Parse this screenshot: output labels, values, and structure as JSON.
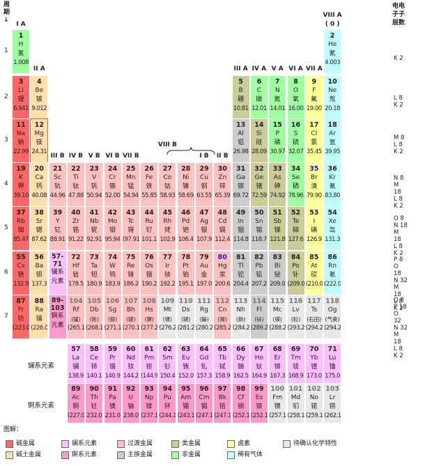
{
  "header": {
    "period_label": "周\n期",
    "arrow": "↓",
    "shell_label_lines": [
      "电电",
      "子子",
      "层数"
    ]
  },
  "groups": [
    {
      "label": "I A",
      "col": 1
    },
    {
      "label": "II A",
      "col": 2
    },
    {
      "label": "III B",
      "col": 3
    },
    {
      "label": "IV B",
      "col": 4
    },
    {
      "label": "V B",
      "col": 5
    },
    {
      "label": "VI B",
      "col": 6
    },
    {
      "label": "VII B",
      "col": 7
    },
    {
      "label": "VIII B",
      "col": 9
    },
    {
      "label": "I B",
      "col": 11
    },
    {
      "label": "II B",
      "col": 12
    },
    {
      "label": "III A",
      "col": 13
    },
    {
      "label": "IV A",
      "col": 14
    },
    {
      "label": "V A",
      "col": 15
    },
    {
      "label": "VI A",
      "col": 16
    },
    {
      "label": "VII A",
      "col": 17
    },
    {
      "label": "VIII A",
      "col": 18
    },
    {
      "label": "( 0 )",
      "col": 18
    }
  ],
  "periods": [
    "1",
    "2",
    "3",
    "4",
    "5",
    "6",
    "7"
  ],
  "shells": [
    [
      "K 2"
    ],
    [
      "L 8",
      "K 2"
    ],
    [
      "M 8",
      "L 8",
      "K 2"
    ],
    [
      "N 8",
      "M 18",
      "L 8",
      "K 2"
    ],
    [
      "O 8",
      "N 18",
      "M 18",
      "L 8",
      "K 2"
    ],
    [
      "P 8",
      "O 18",
      "N 32",
      "M 18",
      "L 8",
      "K 2"
    ],
    [
      "Q 8",
      "P 18",
      "O 32",
      "N 32",
      "M 18",
      "L 8",
      "K 2"
    ]
  ],
  "colors": {
    "alkali": "#ff6666",
    "alkaline": "#ffdead",
    "transition": "#ffc0c0",
    "lanthanide": "#ffbfff",
    "actinide": "#ff99cc",
    "poor": "#cccccc",
    "metalloid": "#cccc99",
    "nonmetal": "#a0ffa0",
    "halogen": "#ffff99",
    "noble": "#c0ffff",
    "unknown": "#e8e8e8"
  },
  "elements": [
    {
      "n": "1",
      "s": "H",
      "c": "氢",
      "m": "1.008",
      "p": 1,
      "g": 1,
      "t": "nonmetal"
    },
    {
      "n": "2",
      "s": "He",
      "c": "氦",
      "m": "4.003",
      "p": 1,
      "g": 18,
      "t": "noble"
    },
    {
      "n": "3",
      "s": "Li",
      "c": "锂",
      "m": "6.941",
      "p": 2,
      "g": 1,
      "t": "alkali"
    },
    {
      "n": "4",
      "s": "Be",
      "c": "铍",
      "m": "9.012",
      "p": 2,
      "g": 2,
      "t": "alkaline"
    },
    {
      "n": "5",
      "s": "B",
      "c": "硼",
      "m": "10.81",
      "p": 2,
      "g": 13,
      "t": "metalloid"
    },
    {
      "n": "6",
      "s": "C",
      "c": "碳",
      "m": "12.01",
      "p": 2,
      "g": 14,
      "t": "nonmetal"
    },
    {
      "n": "7",
      "s": "N",
      "c": "氮",
      "m": "14.01",
      "p": 2,
      "g": 15,
      "t": "nonmetal"
    },
    {
      "n": "8",
      "s": "O",
      "c": "氧",
      "m": "16.00",
      "p": 2,
      "g": 16,
      "t": "nonmetal"
    },
    {
      "n": "9",
      "s": "F",
      "c": "氟",
      "m": "19.00",
      "p": 2,
      "g": 17,
      "t": "halogen"
    },
    {
      "n": "10",
      "s": "Ne",
      "c": "氖",
      "m": "20.18",
      "p": 2,
      "g": 18,
      "t": "noble"
    },
    {
      "n": "11",
      "s": "Na",
      "c": "钠",
      "m": "22.99",
      "p": 3,
      "g": 1,
      "t": "alkali"
    },
    {
      "n": "12",
      "s": "Mg",
      "c": "镁",
      "m": "24.31",
      "p": 3,
      "g": 2,
      "t": "alkaline",
      "sel": true
    },
    {
      "n": "13",
      "s": "Al",
      "c": "铝",
      "m": "26.98",
      "p": 3,
      "g": 13,
      "t": "poor"
    },
    {
      "n": "14",
      "s": "Si",
      "c": "硅",
      "m": "28.09",
      "p": 3,
      "g": 14,
      "t": "metalloid"
    },
    {
      "n": "15",
      "s": "P",
      "c": "磷",
      "m": "30.97",
      "p": 3,
      "g": 15,
      "t": "nonmetal"
    },
    {
      "n": "16",
      "s": "S",
      "c": "硫",
      "m": "32.07",
      "p": 3,
      "g": 16,
      "t": "nonmetal"
    },
    {
      "n": "17",
      "s": "Cl",
      "c": "氯",
      "m": "35.45",
      "p": 3,
      "g": 17,
      "t": "halogen"
    },
    {
      "n": "18",
      "s": "Ar",
      "c": "氩",
      "m": "39.95",
      "p": 3,
      "g": 18,
      "t": "noble"
    },
    {
      "n": "19",
      "s": "K",
      "c": "钾",
      "m": "39.10",
      "p": 4,
      "g": 1,
      "t": "alkali"
    },
    {
      "n": "20",
      "s": "Ca",
      "c": "钙",
      "m": "40.08",
      "p": 4,
      "g": 2,
      "t": "alkaline"
    },
    {
      "n": "21",
      "s": "Sc",
      "c": "钪",
      "m": "44.96",
      "p": 4,
      "g": 3,
      "t": "transition"
    },
    {
      "n": "22",
      "s": "Ti",
      "c": "钛",
      "m": "47.88",
      "p": 4,
      "g": 4,
      "t": "transition"
    },
    {
      "n": "23",
      "s": "V",
      "c": "钒",
      "m": "50.94",
      "p": 4,
      "g": 5,
      "t": "transition"
    },
    {
      "n": "24",
      "s": "Cr",
      "c": "铬",
      "m": "52.00",
      "p": 4,
      "g": 6,
      "t": "transition"
    },
    {
      "n": "25",
      "s": "Mn",
      "c": "锰",
      "m": "54.94",
      "p": 4,
      "g": 7,
      "t": "transition"
    },
    {
      "n": "26",
      "s": "Fe",
      "c": "铁",
      "m": "55.85",
      "p": 4,
      "g": 8,
      "t": "transition"
    },
    {
      "n": "27",
      "s": "Co",
      "c": "钴",
      "m": "58.93",
      "p": 4,
      "g": 9,
      "t": "transition"
    },
    {
      "n": "28",
      "s": "Ni",
      "c": "镍",
      "m": "58.69",
      "p": 4,
      "g": 10,
      "t": "transition"
    },
    {
      "n": "29",
      "s": "Cu",
      "c": "铜",
      "m": "63.55",
      "p": 4,
      "g": 11,
      "t": "transition"
    },
    {
      "n": "30",
      "s": "Zn",
      "c": "锌",
      "m": "65.39",
      "p": 4,
      "g": 12,
      "t": "transition"
    },
    {
      "n": "31",
      "s": "Ga",
      "c": "镓",
      "m": "69.72",
      "p": 4,
      "g": 13,
      "t": "poor"
    },
    {
      "n": "32",
      "s": "Ge",
      "c": "锗",
      "m": "72.59",
      "p": 4,
      "g": 14,
      "t": "metalloid"
    },
    {
      "n": "33",
      "s": "As",
      "c": "砷",
      "m": "74.92",
      "p": 4,
      "g": 15,
      "t": "metalloid"
    },
    {
      "n": "34",
      "s": "Se",
      "c": "硒",
      "m": "78.96",
      "p": 4,
      "g": 16,
      "t": "nonmetal"
    },
    {
      "n": "35",
      "s": "Br",
      "c": "溴",
      "m": "79.90",
      "p": 4,
      "g": 17,
      "t": "halogen",
      "blue": true
    },
    {
      "n": "36",
      "s": "Kr",
      "c": "氪",
      "m": "83.80",
      "p": 4,
      "g": 18,
      "t": "noble"
    },
    {
      "n": "37",
      "s": "Rb",
      "c": "铷",
      "m": "85.47",
      "p": 5,
      "g": 1,
      "t": "alkali"
    },
    {
      "n": "38",
      "s": "Sr",
      "c": "锶",
      "m": "87.62",
      "p": 5,
      "g": 2,
      "t": "alkaline"
    },
    {
      "n": "39",
      "s": "Y",
      "c": "钇",
      "m": "88.91",
      "p": 5,
      "g": 3,
      "t": "transition"
    },
    {
      "n": "40",
      "s": "Zr",
      "c": "锆",
      "m": "91.22",
      "p": 5,
      "g": 4,
      "t": "transition"
    },
    {
      "n": "41",
      "s": "Nb",
      "c": "铌",
      "m": "92.91",
      "p": 5,
      "g": 5,
      "t": "transition"
    },
    {
      "n": "42",
      "s": "Mo",
      "c": "钼",
      "m": "95.94",
      "p": 5,
      "g": 6,
      "t": "transition"
    },
    {
      "n": "43",
      "s": "Tc",
      "c": "锝",
      "m": "(97.91)",
      "p": 5,
      "g": 7,
      "t": "transition"
    },
    {
      "n": "44",
      "s": "Ru",
      "c": "钌",
      "m": "101.1",
      "p": 5,
      "g": 8,
      "t": "transition"
    },
    {
      "n": "45",
      "s": "Rh",
      "c": "铑",
      "m": "102.9",
      "p": 5,
      "g": 9,
      "t": "transition"
    },
    {
      "n": "46",
      "s": "Pd",
      "c": "钯",
      "m": "106.4",
      "p": 5,
      "g": 10,
      "t": "transition"
    },
    {
      "n": "47",
      "s": "Ag",
      "c": "银",
      "m": "107.9",
      "p": 5,
      "g": 11,
      "t": "transition"
    },
    {
      "n": "48",
      "s": "Cd",
      "c": "镉",
      "m": "112.4",
      "p": 5,
      "g": 12,
      "t": "transition"
    },
    {
      "n": "49",
      "s": "In",
      "c": "铟",
      "m": "114.8",
      "p": 5,
      "g": 13,
      "t": "poor"
    },
    {
      "n": "50",
      "s": "Sn",
      "c": "锡",
      "m": "118.7",
      "p": 5,
      "g": 14,
      "t": "poor"
    },
    {
      "n": "51",
      "s": "Sb",
      "c": "锑",
      "m": "121.8",
      "p": 5,
      "g": 15,
      "t": "metalloid"
    },
    {
      "n": "52",
      "s": "Te",
      "c": "碲",
      "m": "127.6",
      "p": 5,
      "g": 16,
      "t": "metalloid"
    },
    {
      "n": "53",
      "s": "I",
      "c": "碘",
      "m": "126.9",
      "p": 5,
      "g": 17,
      "t": "halogen"
    },
    {
      "n": "54",
      "s": "Xe",
      "c": "氙",
      "m": "131.3",
      "p": 5,
      "g": 18,
      "t": "noble"
    },
    {
      "n": "55",
      "s": "Cs",
      "c": "铯",
      "m": "132.9",
      "p": 6,
      "g": 1,
      "t": "alkali"
    },
    {
      "n": "56",
      "s": "Ba",
      "c": "钡",
      "m": "137.3",
      "p": 6,
      "g": 2,
      "t": "alkaline"
    },
    {
      "n": "57-\n71",
      "s": "镧系",
      "c": "元素",
      "m": "",
      "p": 6,
      "g": 3,
      "t": "lanthanide",
      "series": true
    },
    {
      "n": "72",
      "s": "Hf",
      "c": "铪",
      "m": "178.5",
      "p": 6,
      "g": 4,
      "t": "transition"
    },
    {
      "n": "73",
      "s": "Ta",
      "c": "钽",
      "m": "180.9",
      "p": 6,
      "g": 5,
      "t": "transition"
    },
    {
      "n": "74",
      "s": "W",
      "c": "钨",
      "m": "183.9",
      "p": 6,
      "g": 6,
      "t": "transition"
    },
    {
      "n": "75",
      "s": "Re",
      "c": "铼",
      "m": "186.2",
      "p": 6,
      "g": 7,
      "t": "transition"
    },
    {
      "n": "76",
      "s": "Os",
      "c": "锇",
      "m": "190.2",
      "p": 6,
      "g": 8,
      "t": "transition"
    },
    {
      "n": "77",
      "s": "Ir",
      "c": "铱",
      "m": "192.2",
      "p": 6,
      "g": 9,
      "t": "transition"
    },
    {
      "n": "78",
      "s": "Pt",
      "c": "铂",
      "m": "195.1",
      "p": 6,
      "g": 10,
      "t": "transition"
    },
    {
      "n": "79",
      "s": "Au",
      "c": "金",
      "m": "197.0",
      "p": 6,
      "g": 11,
      "t": "transition"
    },
    {
      "n": "80",
      "s": "Hg",
      "c": "汞",
      "m": "200.6",
      "p": 6,
      "g": 12,
      "t": "transition",
      "blue": true
    },
    {
      "n": "81",
      "s": "Tl",
      "c": "铊",
      "m": "204.4",
      "p": 6,
      "g": 13,
      "t": "poor"
    },
    {
      "n": "82",
      "s": "Pb",
      "c": "铅",
      "m": "207.2",
      "p": 6,
      "g": 14,
      "t": "poor"
    },
    {
      "n": "83",
      "s": "Bi",
      "c": "铋",
      "m": "209.0",
      "p": 6,
      "g": 15,
      "t": "poor"
    },
    {
      "n": "84",
      "s": "Po",
      "c": "钋",
      "m": "(209.0)",
      "p": 6,
      "g": 16,
      "t": "metalloid"
    },
    {
      "n": "85",
      "s": "At",
      "c": "砹",
      "m": "(210.0)",
      "p": 6,
      "g": 17,
      "t": "halogen"
    },
    {
      "n": "86",
      "s": "Rn",
      "c": "氡",
      "m": "(222.0)",
      "p": 6,
      "g": 18,
      "t": "noble"
    },
    {
      "n": "87",
      "s": "Fr",
      "c": "钫",
      "m": "(223.0)",
      "p": 7,
      "g": 1,
      "t": "alkali"
    },
    {
      "n": "88",
      "s": "Ra",
      "c": "镭",
      "m": "(226.0)",
      "p": 7,
      "g": 2,
      "t": "alkaline"
    },
    {
      "n": "89-\n103",
      "s": "锕系",
      "c": "元素",
      "m": "",
      "p": 7,
      "g": 3,
      "t": "actinide",
      "series": true
    },
    {
      "n": "104",
      "s": "Rf",
      "c": "(鑪)",
      "m": "(265.1)",
      "p": 7,
      "g": 4,
      "t": "transition"
    },
    {
      "n": "105",
      "s": "Db",
      "c": "(𨧀)",
      "m": "(268.1)",
      "p": 7,
      "g": 5,
      "t": "transition"
    },
    {
      "n": "106",
      "s": "Sg",
      "c": "(𨭎)",
      "m": "(271.1)",
      "p": 7,
      "g": 6,
      "t": "transition"
    },
    {
      "n": "107",
      "s": "Bh",
      "c": "(𨨏)",
      "m": "(270.1)",
      "p": 7,
      "g": 7,
      "t": "transition"
    },
    {
      "n": "108",
      "s": "Hs",
      "c": "(𨭆)",
      "m": "(277.2)",
      "p": 7,
      "g": 8,
      "t": "transition"
    },
    {
      "n": "109",
      "s": "Mt",
      "c": "(鿏)",
      "m": "(276.2)",
      "p": 7,
      "g": 9,
      "t": "unknown"
    },
    {
      "n": "110",
      "s": "Ds",
      "c": "(鐽)",
      "m": "(281.2)",
      "p": 7,
      "g": 10,
      "t": "unknown"
    },
    {
      "n": "111",
      "s": "Rg",
      "c": "(錀)",
      "m": "(280.2)",
      "p": 7,
      "g": 11,
      "t": "unknown"
    },
    {
      "n": "112",
      "s": "Cn",
      "c": "(鎶)",
      "m": "(285.2)",
      "p": 7,
      "g": 12,
      "t": "transition"
    },
    {
      "n": "113",
      "s": "Nh",
      "c": "(鉨)",
      "m": "(284.2)",
      "p": 7,
      "g": 13,
      "t": "unknown"
    },
    {
      "n": "114",
      "s": "Fl",
      "c": "(𫓧)",
      "m": "(289.2)",
      "p": 7,
      "g": 14,
      "t": "poor"
    },
    {
      "n": "115",
      "s": "Mc",
      "c": "(镆)",
      "m": "(288.2)",
      "p": 7,
      "g": 15,
      "t": "unknown"
    },
    {
      "n": "116",
      "s": "Lv",
      "c": "(鉝)",
      "m": "(293.2)",
      "p": 7,
      "g": 16,
      "t": "unknown"
    },
    {
      "n": "117",
      "s": "Ts",
      "c": "(石田)",
      "m": "(294.2)",
      "p": 7,
      "g": 17,
      "t": "unknown"
    },
    {
      "n": "118",
      "s": "Og",
      "c": "(气奥)",
      "m": "(294.2)",
      "p": 7,
      "g": 18,
      "t": "unknown"
    }
  ],
  "lanthanides": {
    "label": "镧系元素",
    "items": [
      {
        "n": "57",
        "s": "La",
        "c": "镧",
        "m": "138.9"
      },
      {
        "n": "58",
        "s": "Ce",
        "c": "铈",
        "m": "140.1"
      },
      {
        "n": "59",
        "s": "Pr",
        "c": "镨",
        "m": "140.9"
      },
      {
        "n": "60",
        "s": "Nd",
        "c": "钕",
        "m": "144.2"
      },
      {
        "n": "61",
        "s": "Pm",
        "c": "钷",
        "m": "(144.9)"
      },
      {
        "n": "62",
        "s": "Sm",
        "c": "钐",
        "m": "150.4"
      },
      {
        "n": "63",
        "s": "Eu",
        "c": "铕",
        "m": "152.0"
      },
      {
        "n": "64",
        "s": "Gd",
        "c": "钆",
        "m": "157.3"
      },
      {
        "n": "65",
        "s": "Tb",
        "c": "铽",
        "m": "158.9"
      },
      {
        "n": "66",
        "s": "Dy",
        "c": "镝",
        "m": "162.5"
      },
      {
        "n": "67",
        "s": "Ho",
        "c": "钬",
        "m": "164.9"
      },
      {
        "n": "68",
        "s": "Er",
        "c": "铒",
        "m": "167.3"
      },
      {
        "n": "69",
        "s": "Tm",
        "c": "铥",
        "m": "168.9"
      },
      {
        "n": "70",
        "s": "Yb",
        "c": "镱",
        "m": "173.0"
      },
      {
        "n": "71",
        "s": "Lu",
        "c": "镥",
        "m": "175.0"
      }
    ]
  },
  "actinides": {
    "label": "锕系元素",
    "items": [
      {
        "n": "89",
        "s": "Ac",
        "c": "锕",
        "m": "(227.0)"
      },
      {
        "n": "90",
        "s": "Th",
        "c": "钍",
        "m": "232.0"
      },
      {
        "n": "91",
        "s": "Pa",
        "c": "镤",
        "m": "231.0"
      },
      {
        "n": "92",
        "s": "U",
        "c": "铀",
        "m": "238.0"
      },
      {
        "n": "93",
        "s": "Np",
        "c": "镎",
        "m": "(237.1)"
      },
      {
        "n": "94",
        "s": "Pu",
        "c": "钚",
        "m": "(244.1)"
      },
      {
        "n": "95",
        "s": "Am",
        "c": "镅",
        "m": "(243.1)"
      },
      {
        "n": "96",
        "s": "Cm",
        "c": "锔",
        "m": "(247.1)"
      },
      {
        "n": "97",
        "s": "Bk",
        "c": "锫",
        "m": "(247.1)"
      },
      {
        "n": "98",
        "s": "Cf",
        "c": "锎",
        "m": "(252.1)"
      },
      {
        "n": "99",
        "s": "Es",
        "c": "锿",
        "m": "(252.1)"
      },
      {
        "n": "100",
        "s": "Fm",
        "c": "镄",
        "m": "(257.1)",
        "unk": true
      },
      {
        "n": "101",
        "s": "Md",
        "c": "钔",
        "m": "(258.1)",
        "unk": true
      },
      {
        "n": "102",
        "s": "No",
        "c": "锘",
        "m": "(259.1)",
        "unk": true
      },
      {
        "n": "103",
        "s": "Lr",
        "c": "铹",
        "m": "(262.1)",
        "unk": true
      }
    ]
  },
  "legend": {
    "title": "图解：",
    "items": [
      {
        "label": "碱金属",
        "t": "alkali"
      },
      {
        "label": "碱土金属",
        "t": "alkaline"
      },
      {
        "label": "镧系元素",
        "t": "lanthanide"
      },
      {
        "label": "锕系元素",
        "t": "actinide"
      },
      {
        "label": "过渡金属",
        "t": "transition"
      },
      {
        "label": "主族金属",
        "t": "poor"
      },
      {
        "label": "类金属",
        "t": "metalloid"
      },
      {
        "label": "非金属",
        "t": "nonmetal"
      },
      {
        "label": "卤素",
        "t": "halogen"
      },
      {
        "label": "稀有气体",
        "t": "noble"
      },
      {
        "label": "待确认化学特性",
        "t": "unknown"
      }
    ]
  }
}
